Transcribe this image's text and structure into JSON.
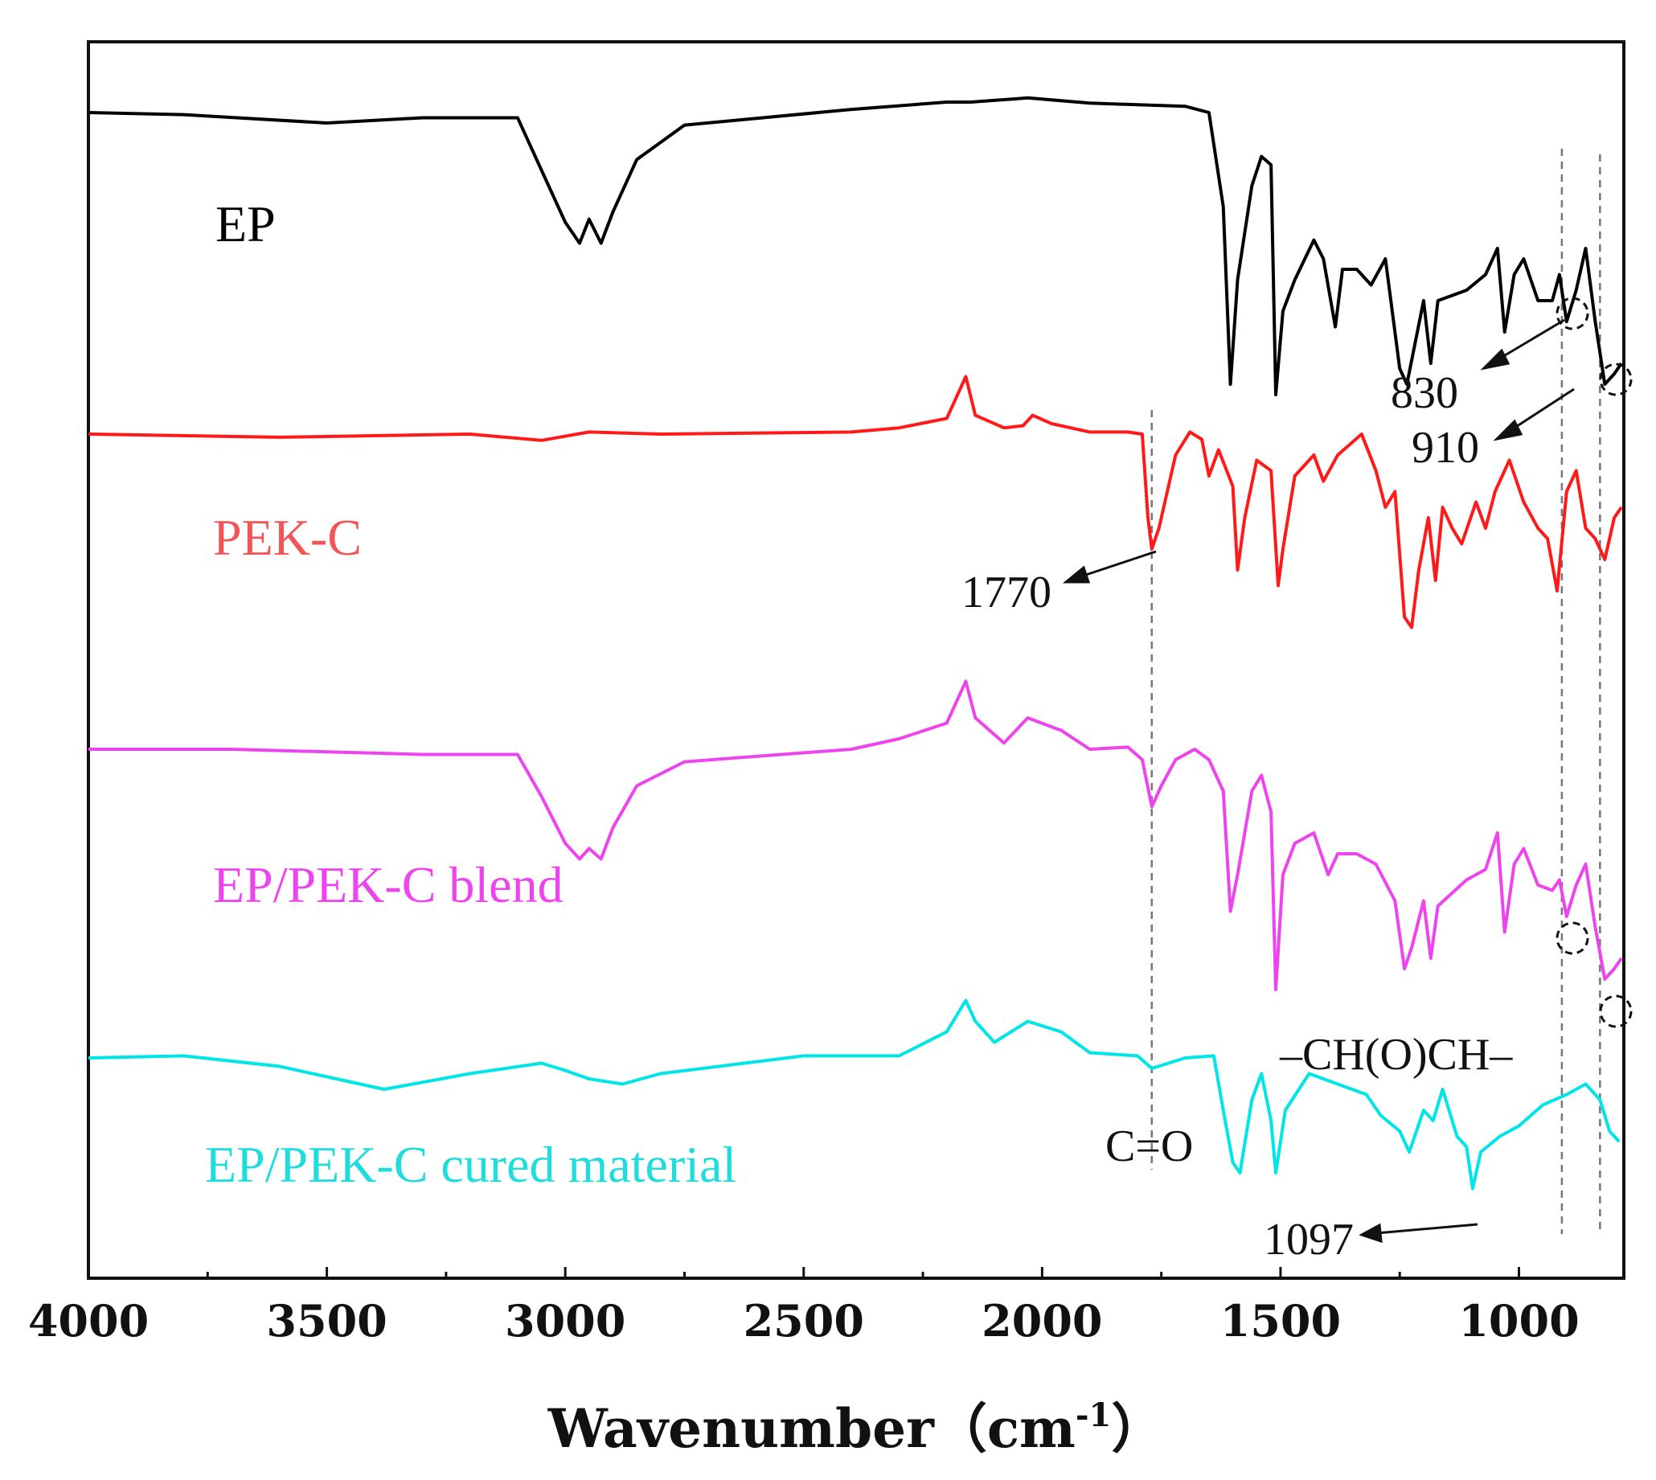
{
  "chart_data": {
    "type": "line",
    "title": "",
    "xlabel": "Wavenumber（cm",
    "xlabel_sup": "-1",
    "xlabel_close": "）",
    "ylabel": "",
    "xlim": [
      4000,
      780
    ],
    "x_reversed": true,
    "xticks": [
      4000,
      3500,
      3000,
      2500,
      2000,
      1500,
      1000
    ],
    "yticks": [],
    "grid": false,
    "colors": {
      "EP": "#000000",
      "PEK-C": "#ff1a1a",
      "EP/PEK-C blend": "#ee44ee",
      "EP/PEK-C cured material": "#00e5e5",
      "annot": "#222222",
      "dash": "#777777"
    },
    "series": [
      {
        "name": "EP",
        "label": "EP",
        "points": [
          [
            4000,
            0.0
          ],
          [
            3800,
            0.02
          ],
          [
            3500,
            0.1
          ],
          [
            3300,
            0.05
          ],
          [
            3100,
            0.05
          ],
          [
            3050,
            0.55
          ],
          [
            3000,
            1.05
          ],
          [
            2970,
            1.25
          ],
          [
            2950,
            1.02
          ],
          [
            2925,
            1.25
          ],
          [
            2900,
            0.95
          ],
          [
            2850,
            0.45
          ],
          [
            2750,
            0.12
          ],
          [
            2400,
            -0.03
          ],
          [
            2200,
            -0.1
          ],
          [
            2150,
            -0.1
          ],
          [
            2030,
            -0.14
          ],
          [
            1900,
            -0.09
          ],
          [
            1700,
            -0.06
          ],
          [
            1650,
            0.0
          ],
          [
            1620,
            0.9
          ],
          [
            1605,
            2.6
          ],
          [
            1590,
            1.6
          ],
          [
            1560,
            0.7
          ],
          [
            1540,
            0.42
          ],
          [
            1520,
            0.5
          ],
          [
            1510,
            2.7
          ],
          [
            1495,
            1.9
          ],
          [
            1470,
            1.6
          ],
          [
            1430,
            1.22
          ],
          [
            1410,
            1.4
          ],
          [
            1385,
            2.05
          ],
          [
            1370,
            1.5
          ],
          [
            1340,
            1.5
          ],
          [
            1310,
            1.65
          ],
          [
            1280,
            1.4
          ],
          [
            1250,
            2.45
          ],
          [
            1235,
            2.6
          ],
          [
            1200,
            1.8
          ],
          [
            1185,
            2.4
          ],
          [
            1170,
            1.8
          ],
          [
            1110,
            1.7
          ],
          [
            1070,
            1.55
          ],
          [
            1045,
            1.3
          ],
          [
            1030,
            2.1
          ],
          [
            1010,
            1.55
          ],
          [
            990,
            1.4
          ],
          [
            960,
            1.8
          ],
          [
            930,
            1.8
          ],
          [
            915,
            1.55
          ],
          [
            900,
            2.0
          ],
          [
            880,
            1.7
          ],
          [
            860,
            1.3
          ],
          [
            840,
            2.0
          ],
          [
            820,
            2.6
          ],
          [
            800,
            2.5
          ],
          [
            785,
            2.4
          ]
        ]
      },
      {
        "name": "PEK-C",
        "label": "PEK-C",
        "points": [
          [
            4000,
            0.0
          ],
          [
            3600,
            0.03
          ],
          [
            3200,
            0.0
          ],
          [
            3050,
            0.06
          ],
          [
            2950,
            -0.02
          ],
          [
            2800,
            0.0
          ],
          [
            2400,
            -0.02
          ],
          [
            2300,
            -0.06
          ],
          [
            2200,
            -0.15
          ],
          [
            2160,
            -0.55
          ],
          [
            2140,
            -0.18
          ],
          [
            2080,
            -0.06
          ],
          [
            2040,
            -0.08
          ],
          [
            2020,
            -0.18
          ],
          [
            1980,
            -0.1
          ],
          [
            1900,
            -0.02
          ],
          [
            1820,
            -0.02
          ],
          [
            1790,
            0.0
          ],
          [
            1778,
            0.8
          ],
          [
            1770,
            1.1
          ],
          [
            1755,
            0.9
          ],
          [
            1720,
            0.2
          ],
          [
            1690,
            -0.02
          ],
          [
            1665,
            0.05
          ],
          [
            1650,
            0.4
          ],
          [
            1630,
            0.15
          ],
          [
            1600,
            0.5
          ],
          [
            1590,
            1.3
          ],
          [
            1575,
            0.8
          ],
          [
            1550,
            0.25
          ],
          [
            1520,
            0.35
          ],
          [
            1505,
            1.45
          ],
          [
            1495,
            1.1
          ],
          [
            1470,
            0.4
          ],
          [
            1430,
            0.2
          ],
          [
            1410,
            0.45
          ],
          [
            1380,
            0.2
          ],
          [
            1330,
            0.0
          ],
          [
            1300,
            0.35
          ],
          [
            1280,
            0.7
          ],
          [
            1260,
            0.55
          ],
          [
            1240,
            1.75
          ],
          [
            1225,
            1.85
          ],
          [
            1210,
            1.3
          ],
          [
            1190,
            0.8
          ],
          [
            1175,
            1.4
          ],
          [
            1160,
            0.7
          ],
          [
            1140,
            0.9
          ],
          [
            1120,
            1.05
          ],
          [
            1090,
            0.65
          ],
          [
            1070,
            0.9
          ],
          [
            1050,
            0.55
          ],
          [
            1020,
            0.25
          ],
          [
            990,
            0.65
          ],
          [
            960,
            0.9
          ],
          [
            940,
            1.0
          ],
          [
            920,
            1.5
          ],
          [
            900,
            0.55
          ],
          [
            880,
            0.35
          ],
          [
            860,
            0.9
          ],
          [
            840,
            1.0
          ],
          [
            820,
            1.2
          ],
          [
            800,
            0.8
          ],
          [
            785,
            0.7
          ]
        ]
      },
      {
        "name": "EP/PEK-C blend",
        "label": "EP/PEK-C blend",
        "points": [
          [
            4000,
            0.0
          ],
          [
            3700,
            0.0
          ],
          [
            3300,
            0.05
          ],
          [
            3100,
            0.05
          ],
          [
            3050,
            0.45
          ],
          [
            3000,
            0.9
          ],
          [
            2970,
            1.05
          ],
          [
            2950,
            0.95
          ],
          [
            2925,
            1.05
          ],
          [
            2900,
            0.75
          ],
          [
            2850,
            0.35
          ],
          [
            2750,
            0.12
          ],
          [
            2400,
            0.0
          ],
          [
            2300,
            -0.1
          ],
          [
            2200,
            -0.25
          ],
          [
            2160,
            -0.65
          ],
          [
            2140,
            -0.3
          ],
          [
            2080,
            -0.06
          ],
          [
            2030,
            -0.3
          ],
          [
            1960,
            -0.18
          ],
          [
            1900,
            0.0
          ],
          [
            1820,
            -0.02
          ],
          [
            1790,
            0.1
          ],
          [
            1770,
            0.55
          ],
          [
            1750,
            0.35
          ],
          [
            1720,
            0.1
          ],
          [
            1680,
            0.0
          ],
          [
            1650,
            0.1
          ],
          [
            1620,
            0.4
          ],
          [
            1605,
            1.55
          ],
          [
            1590,
            1.2
          ],
          [
            1560,
            0.4
          ],
          [
            1540,
            0.25
          ],
          [
            1520,
            0.6
          ],
          [
            1510,
            2.3
          ],
          [
            1495,
            1.2
          ],
          [
            1470,
            0.9
          ],
          [
            1430,
            0.8
          ],
          [
            1400,
            1.2
          ],
          [
            1380,
            1.0
          ],
          [
            1340,
            1.0
          ],
          [
            1300,
            1.1
          ],
          [
            1260,
            1.45
          ],
          [
            1240,
            2.1
          ],
          [
            1225,
            1.9
          ],
          [
            1200,
            1.45
          ],
          [
            1185,
            2.0
          ],
          [
            1170,
            1.5
          ],
          [
            1110,
            1.25
          ],
          [
            1070,
            1.15
          ],
          [
            1045,
            0.8
          ],
          [
            1030,
            1.75
          ],
          [
            1010,
            1.1
          ],
          [
            990,
            0.95
          ],
          [
            960,
            1.3
          ],
          [
            930,
            1.35
          ],
          [
            915,
            1.25
          ],
          [
            900,
            1.6
          ],
          [
            880,
            1.3
          ],
          [
            860,
            1.1
          ],
          [
            840,
            1.7
          ],
          [
            820,
            2.2
          ],
          [
            800,
            2.1
          ],
          [
            785,
            2.0
          ]
        ]
      },
      {
        "name": "EP/PEK-C cured material",
        "label": "EP/PEK-C cured material",
        "points": [
          [
            4000,
            0.0
          ],
          [
            3800,
            -0.02
          ],
          [
            3600,
            0.08
          ],
          [
            3380,
            0.3
          ],
          [
            3200,
            0.15
          ],
          [
            3050,
            0.05
          ],
          [
            3000,
            0.12
          ],
          [
            2950,
            0.2
          ],
          [
            2880,
            0.25
          ],
          [
            2800,
            0.15
          ],
          [
            2500,
            -0.02
          ],
          [
            2300,
            -0.02
          ],
          [
            2200,
            -0.25
          ],
          [
            2160,
            -0.55
          ],
          [
            2140,
            -0.35
          ],
          [
            2100,
            -0.15
          ],
          [
            2030,
            -0.35
          ],
          [
            1960,
            -0.25
          ],
          [
            1900,
            -0.05
          ],
          [
            1800,
            -0.02
          ],
          [
            1770,
            0.1
          ],
          [
            1700,
            0.0
          ],
          [
            1640,
            -0.02
          ],
          [
            1620,
            0.5
          ],
          [
            1600,
            1.0
          ],
          [
            1585,
            1.1
          ],
          [
            1560,
            0.4
          ],
          [
            1540,
            0.15
          ],
          [
            1520,
            0.6
          ],
          [
            1510,
            1.1
          ],
          [
            1490,
            0.5
          ],
          [
            1440,
            0.15
          ],
          [
            1380,
            0.25
          ],
          [
            1320,
            0.35
          ],
          [
            1290,
            0.55
          ],
          [
            1250,
            0.7
          ],
          [
            1230,
            0.9
          ],
          [
            1200,
            0.5
          ],
          [
            1180,
            0.6
          ],
          [
            1160,
            0.3
          ],
          [
            1130,
            0.75
          ],
          [
            1110,
            0.85
          ],
          [
            1097,
            1.25
          ],
          [
            1080,
            0.9
          ],
          [
            1040,
            0.75
          ],
          [
            1000,
            0.65
          ],
          [
            950,
            0.45
          ],
          [
            900,
            0.35
          ],
          [
            860,
            0.25
          ],
          [
            830,
            0.4
          ],
          [
            810,
            0.7
          ],
          [
            790,
            0.8
          ]
        ]
      }
    ],
    "annotations": [
      {
        "text": "830",
        "x": 910
      },
      {
        "text": "910",
        "x": 830
      },
      {
        "text": "1770",
        "x": 1770
      },
      {
        "text": "1097",
        "x": 1097
      },
      {
        "text": "C=O",
        "x": 1770
      },
      {
        "text": "–CH(O)CH–",
        "x": 910
      }
    ]
  }
}
